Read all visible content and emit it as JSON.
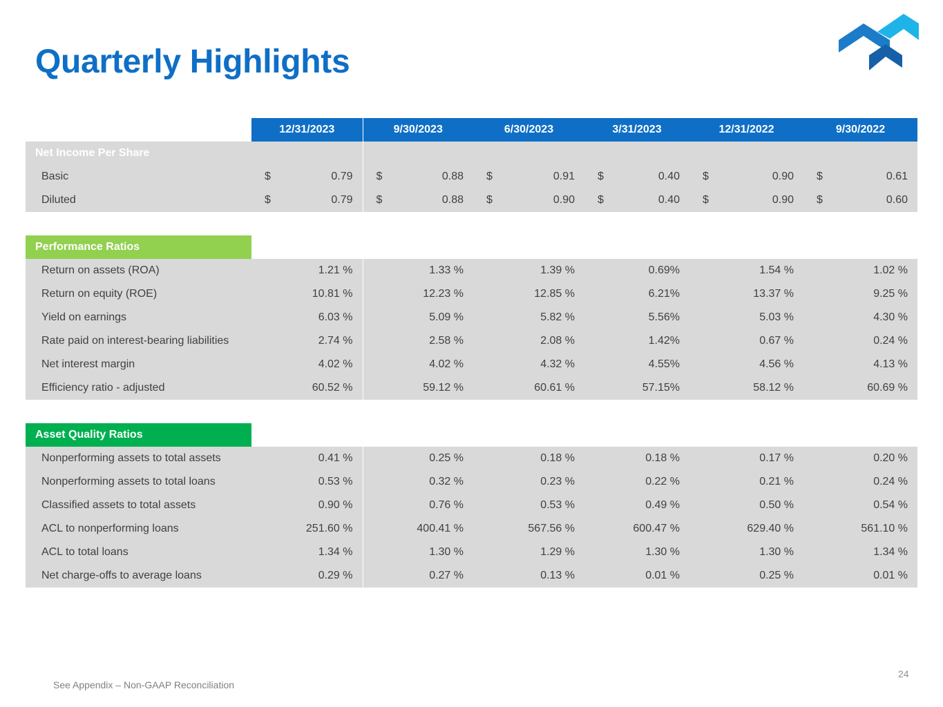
{
  "title": "Quarterly Highlights",
  "logo": {
    "icon": "company-chevron-logo",
    "colors": [
      "#1fb4e8",
      "#1c7cc9",
      "#1560a8"
    ]
  },
  "table": {
    "columns": [
      "12/31/2023",
      "9/30/2023",
      "6/30/2023",
      "3/31/2023",
      "12/31/2022",
      "9/30/2022"
    ],
    "net_income": {
      "title": "Net Income Per Share",
      "currency": "$",
      "rows": [
        {
          "label": "Basic",
          "values": [
            "0.79",
            "0.88",
            "0.91",
            "0.40",
            "0.90",
            "0.61"
          ]
        },
        {
          "label": "Diluted",
          "values": [
            "0.79",
            "0.88",
            "0.90",
            "0.40",
            "0.90",
            "0.60"
          ]
        }
      ]
    },
    "performance": {
      "title": "Performance Ratios",
      "rows": [
        {
          "label": "Return on assets (ROA)",
          "values": [
            "1.21 %",
            "1.33 %",
            "1.39 %",
            "0.69%",
            "1.54 %",
            "1.02 %"
          ]
        },
        {
          "label": "Return on equity (ROE)",
          "values": [
            "10.81 %",
            "12.23 %",
            "12.85 %",
            "6.21%",
            "13.37 %",
            "9.25 %"
          ]
        },
        {
          "label": "Yield on earnings",
          "values": [
            "6.03 %",
            "5.09 %",
            "5.82 %",
            "5.56%",
            "5.03 %",
            "4.30 %"
          ]
        },
        {
          "label": "Rate paid on interest-bearing liabilities",
          "values": [
            "2.74 %",
            "2.58 %",
            "2.08 %",
            "1.42%",
            "0.67 %",
            "0.24 %"
          ]
        },
        {
          "label": "Net interest margin",
          "values": [
            "4.02 %",
            "4.02 %",
            "4.32 %",
            "4.55%",
            "4.56 %",
            "4.13 %"
          ]
        },
        {
          "label": "Efficiency ratio - adjusted",
          "values": [
            "60.52 %",
            "59.12 %",
            "60.61 %",
            "57.15%",
            "58.12 %",
            "60.69 %"
          ]
        }
      ]
    },
    "asset_quality": {
      "title": "Asset Quality Ratios",
      "rows": [
        {
          "label": "Nonperforming assets to total assets",
          "values": [
            "0.41 %",
            "0.25 %",
            "0.18 %",
            "0.18 %",
            "0.17 %",
            "0.20 %"
          ]
        },
        {
          "label": "Nonperforming assets to total loans",
          "values": [
            "0.53 %",
            "0.32 %",
            "0.23 %",
            "0.22 %",
            "0.21 %",
            "0.24 %"
          ]
        },
        {
          "label": "Classified assets to total assets",
          "values": [
            "0.90 %",
            "0.76 %",
            "0.53 %",
            "0.49 %",
            "0.50 %",
            "0.54 %"
          ]
        },
        {
          "label": "ACL to nonperforming loans",
          "values": [
            "251.60 %",
            "400.41 %",
            "567.56 %",
            "600.47 %",
            "629.40 %",
            "561.10 %"
          ]
        },
        {
          "label": "ACL to total loans",
          "values": [
            "1.34 %",
            "1.30 %",
            "1.29 %",
            "1.30 %",
            "1.30 %",
            "1.34 %"
          ]
        },
        {
          "label": "Net charge-offs to average loans",
          "values": [
            "0.29 %",
            "0.27 %",
            "0.13 %",
            "0.01 %",
            "0.25 %",
            "0.01 %"
          ]
        }
      ]
    }
  },
  "footnote": "See Appendix – Non-GAAP Reconciliation",
  "page_number": "24"
}
